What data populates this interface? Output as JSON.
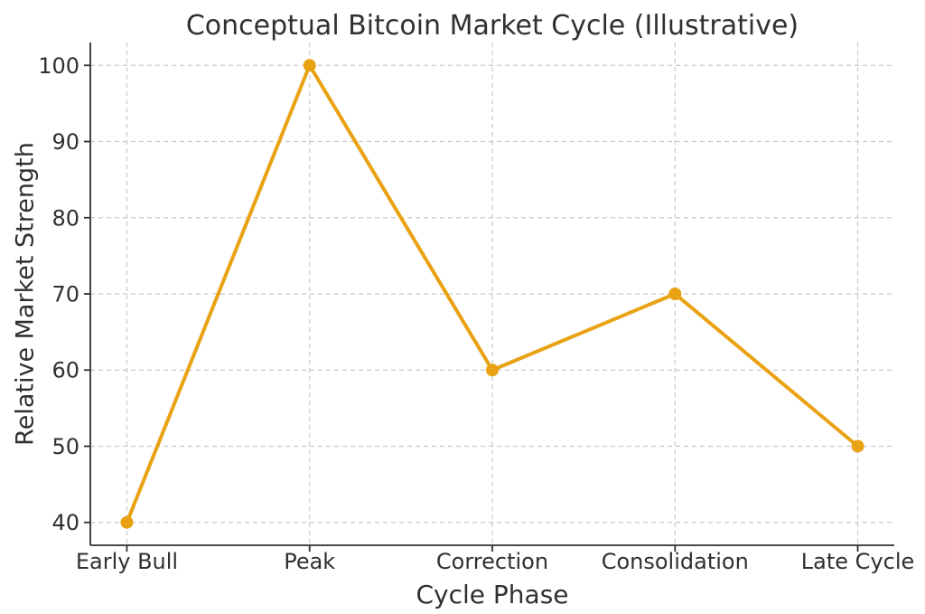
{
  "chart_data": {
    "type": "line",
    "title": "Conceptual Bitcoin Market Cycle (Illustrative)",
    "xlabel": "Cycle Phase",
    "ylabel": "Relative Market Strength",
    "categories": [
      "Early Bull",
      "Peak",
      "Correction",
      "Consolidation",
      "Late Cycle"
    ],
    "values": [
      40,
      100,
      60,
      70,
      50
    ],
    "yticks": [
      40,
      50,
      60,
      70,
      80,
      90,
      100
    ],
    "ylim": [
      37,
      103
    ],
    "xlim": [
      -0.2,
      4.2
    ],
    "grid": true,
    "grid_style": "dashed",
    "legend": "none",
    "marker": "circle",
    "line_color": "#E8A213"
  },
  "colors": {
    "line": "#E8A213",
    "marker": "#E8A213",
    "grid": "#c9c9c9",
    "spine": "#303030",
    "text": "#303030",
    "background": "#ffffff"
  }
}
